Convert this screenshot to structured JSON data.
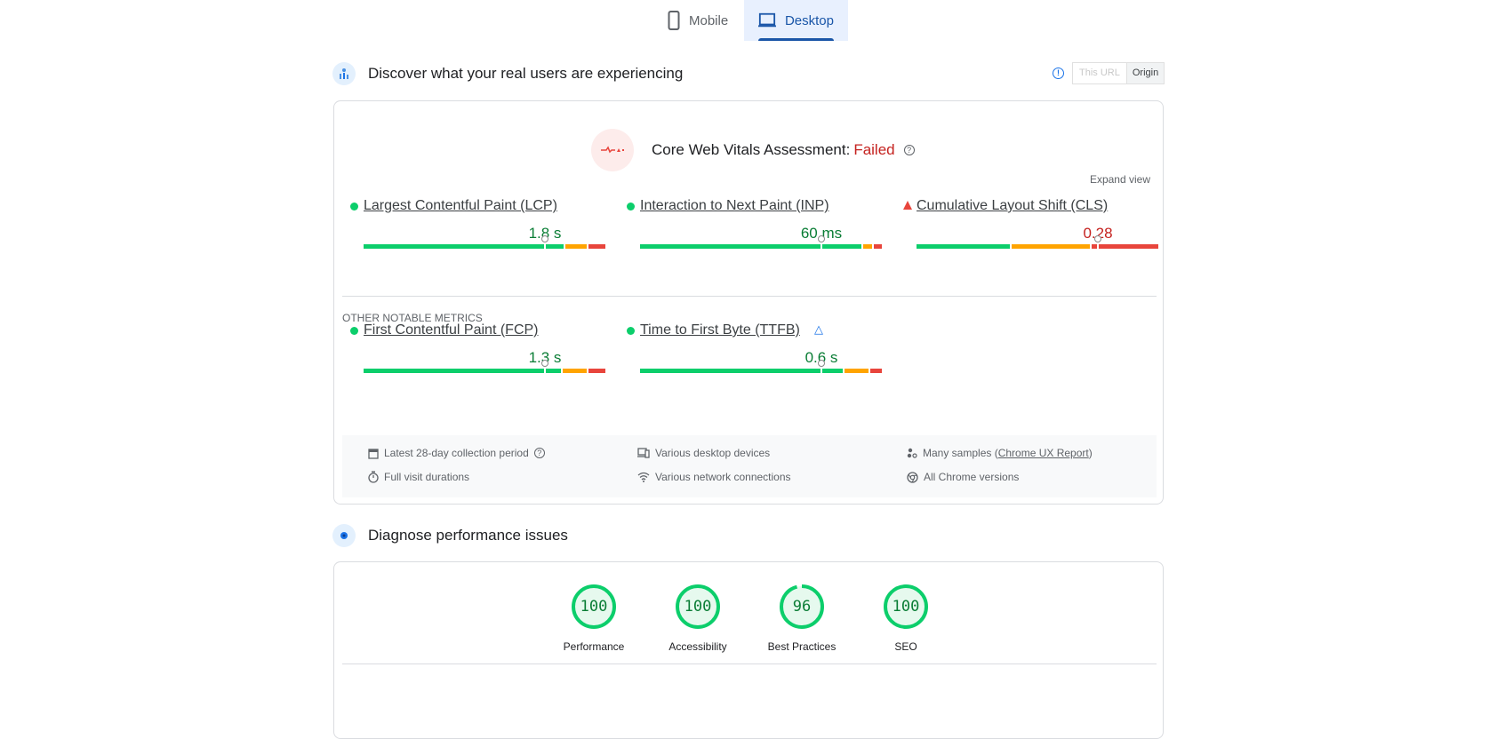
{
  "tabs": [
    {
      "label": "Mobile",
      "icon": "mobile-icon"
    },
    {
      "label": "Desktop",
      "icon": "desktop-icon",
      "active": true
    }
  ],
  "field": {
    "title": "Discover what your real users are experiencing",
    "toggle": {
      "this_url": "This URL",
      "origin": "Origin",
      "selected": "Origin"
    },
    "assessment": {
      "label": "Core Web Vitals Assessment:",
      "status": "Failed"
    },
    "expand": "Expand view",
    "core_metrics": [
      {
        "label": "Largest Contentful Paint (LCP)",
        "value": "1.8 s",
        "rating": "good",
        "distribution": [
          84,
          9,
          7
        ],
        "p75": 75
      },
      {
        "label": "Interaction to Next Paint (INP)",
        "value": "60 ms",
        "rating": "good",
        "distribution": [
          93,
          3.5,
          3.5
        ],
        "p75": 75
      },
      {
        "label": "Cumulative Layout Shift (CLS)",
        "value": "0.28",
        "rating": "poor",
        "distribution": [
          39,
          33,
          28
        ],
        "p75": 75
      }
    ],
    "other_heading": "OTHER NOTABLE METRICS",
    "other_metrics": [
      {
        "label": "First Contentful Paint (FCP)",
        "value": "1.3 s",
        "rating": "good",
        "distribution": [
          83,
          10,
          7
        ],
        "p75": 75
      },
      {
        "label": "Time to First Byte (TTFB)",
        "value": "0.6 s",
        "rating": "good",
        "distribution": [
          85,
          10,
          5
        ],
        "p75": 75,
        "experimental": true
      }
    ],
    "footer": {
      "period": "Latest 28-day collection period",
      "durations": "Full visit durations",
      "devices": "Various desktop devices",
      "network": "Various network connections",
      "samples_prefix": "Many samples (",
      "samples_link": "Chrome UX Report",
      "samples_suffix": ")",
      "versions": "All Chrome versions"
    }
  },
  "lab": {
    "title": "Diagnose performance issues",
    "scores": [
      {
        "label": "Performance",
        "score": "100"
      },
      {
        "label": "Accessibility",
        "score": "100"
      },
      {
        "label": "Best Practices",
        "score": "96"
      },
      {
        "label": "SEO",
        "score": "100"
      }
    ]
  },
  "colors": {
    "good": "#0cce6b",
    "ni": "#ffa400",
    "poor": "#e8453c",
    "good_text": "#0a7d35",
    "poor_text": "#c5221f",
    "accent": "#1a56a8"
  }
}
